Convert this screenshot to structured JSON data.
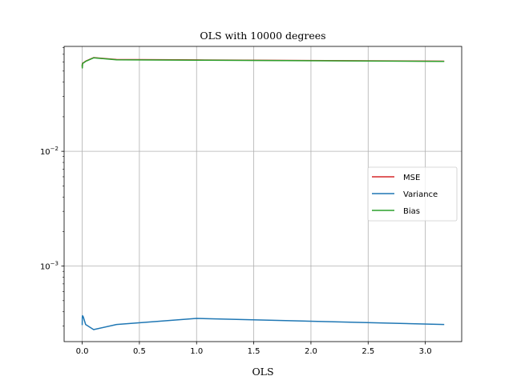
{
  "chart_data": {
    "type": "line",
    "title": "OLS with 10000 degrees",
    "xlabel": "OLS",
    "ylabel": "",
    "xlim": [
      -0.158,
      3.318
    ],
    "ylim": [
      0.00022,
      0.082
    ],
    "yscale": "log",
    "grid": true,
    "legend_position": "center-right",
    "x_ticks": [
      {
        "value": 0.0,
        "label": "0.0"
      },
      {
        "value": 0.5,
        "label": "0.5"
      },
      {
        "value": 1.0,
        "label": "1.0"
      },
      {
        "value": 1.5,
        "label": "1.5"
      },
      {
        "value": 2.0,
        "label": "2.0"
      },
      {
        "value": 2.5,
        "label": "2.5"
      },
      {
        "value": 3.0,
        "label": "3.0"
      }
    ],
    "y_ticks": [
      {
        "value": 0.01,
        "base": "10",
        "exp": "−2"
      },
      {
        "value": 0.001,
        "base": "10",
        "exp": "−3"
      }
    ],
    "x": [
      0.0001,
      0.001,
      0.003,
      0.01,
      0.03,
      0.1,
      0.3,
      1.0,
      3.16
    ],
    "series": [
      {
        "name": "MSE",
        "color": "#d62728",
        "values": [
          0.0565,
          0.0535,
          0.0585,
          0.059,
          0.061,
          0.0655,
          0.063,
          0.0625,
          0.061
        ]
      },
      {
        "name": "Variance",
        "color": "#1f77b4",
        "values": [
          0.00031,
          0.00036,
          0.00037,
          0.00036,
          0.00031,
          0.00028,
          0.00031,
          0.00035,
          0.00031
        ]
      },
      {
        "name": "Bias",
        "color": "#2ca02c",
        "values": [
          0.0562,
          0.0532,
          0.0582,
          0.0587,
          0.0607,
          0.0652,
          0.0627,
          0.0622,
          0.0607
        ]
      }
    ]
  }
}
